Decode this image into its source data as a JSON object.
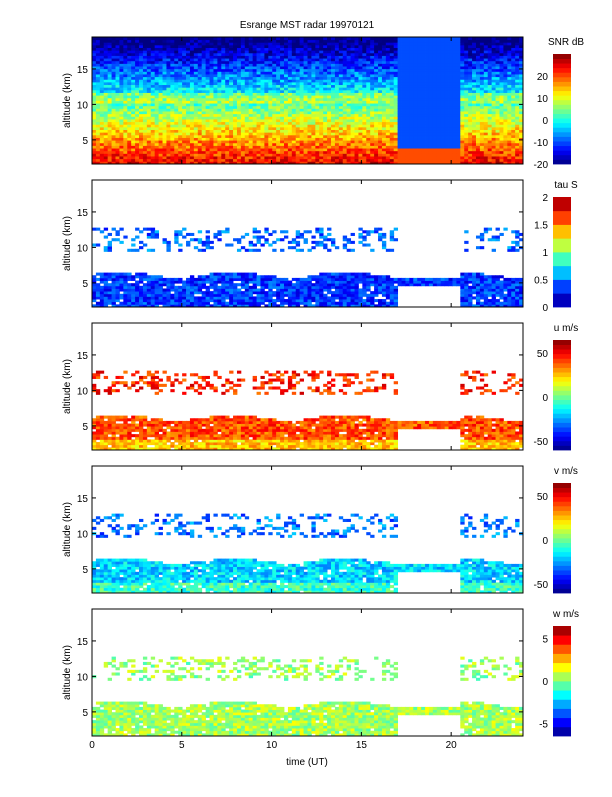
{
  "chart_data": {
    "title": "Esrange MST radar 19970121",
    "type": "heatmap",
    "xlabel": "time (UT)",
    "xlim": [
      0,
      24
    ],
    "xticks": [
      "0",
      "5",
      "10",
      "15",
      "20"
    ],
    "data_gap_ut": [
      17,
      20.5
    ],
    "panels": [
      {
        "name": "snr",
        "ylabel": "altitude (km)",
        "ylim": [
          1.6,
          19.5
        ],
        "yticks": [
          "5",
          "10",
          "15"
        ],
        "colorbar_label": "SNR dB",
        "clim": [
          -20,
          30
        ],
        "colorbar_ticks": [
          "20",
          "10",
          "0",
          "-10",
          "-20"
        ],
        "colorbar_tick_values": [
          20,
          10,
          0,
          -10,
          -20
        ],
        "description_values": {
          "near_ground": 25,
          "mid_5km": 10,
          "upper_15km": -12
        }
      },
      {
        "name": "tau",
        "ylabel": "altitude (km)",
        "ylim": [
          1.6,
          19.5
        ],
        "yticks": [
          "5",
          "10",
          "15"
        ],
        "colorbar_label": "tau S",
        "clim": [
          0,
          2
        ],
        "colorbar_ticks": [
          "2",
          "1.5",
          "1",
          "0.5",
          "0"
        ],
        "colorbar_tick_values": [
          2,
          1.5,
          1,
          0.5,
          0
        ],
        "description_values": {
          "lower_layer": 0.35,
          "upper_layer": 0.45
        }
      },
      {
        "name": "u",
        "ylabel": "altitude (km)",
        "ylim": [
          1.6,
          19.5
        ],
        "yticks": [
          "5",
          "10",
          "15"
        ],
        "colorbar_label": "u m/s",
        "clim": [
          -60,
          65
        ],
        "colorbar_ticks": [
          "50",
          "0",
          "-50"
        ],
        "colorbar_tick_values": [
          50,
          0,
          -50
        ],
        "description_values": {
          "lower_layer": 40,
          "upper_layer": 45
        }
      },
      {
        "name": "v",
        "ylabel": "altitude (km)",
        "ylim": [
          1.6,
          19.5
        ],
        "yticks": [
          "5",
          "10",
          "15"
        ],
        "colorbar_label": "v m/s",
        "clim": [
          -60,
          65
        ],
        "colorbar_ticks": [
          "50",
          "0",
          "-50"
        ],
        "colorbar_tick_values": [
          50,
          0,
          -50
        ],
        "description_values": {
          "lower_layer": -18,
          "upper_layer": -30
        }
      },
      {
        "name": "w",
        "ylabel": "altitude (km)",
        "ylim": [
          1.6,
          19.5
        ],
        "yticks": [
          "5",
          "10",
          "15"
        ],
        "colorbar_label": "w m/s",
        "clim": [
          -6.5,
          6.5
        ],
        "colorbar_ticks": [
          "5",
          "0",
          "-5"
        ],
        "colorbar_tick_values": [
          5,
          0,
          -5
        ],
        "description_values": {
          "lower_layer": 0.5,
          "upper_layer": 0.3
        }
      }
    ]
  }
}
